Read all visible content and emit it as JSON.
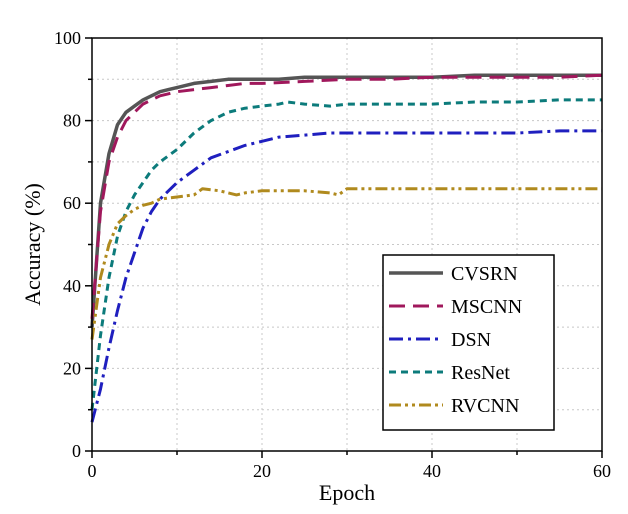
{
  "chart_data": {
    "type": "line",
    "title": "",
    "xlabel": "Epoch",
    "ylabel": "Accuracy (%)",
    "xlim": [
      0,
      60
    ],
    "ylim": [
      0,
      100
    ],
    "xticks": [
      0,
      20,
      40,
      60
    ],
    "yticks": [
      0,
      20,
      40,
      60,
      80,
      100
    ],
    "grid": true,
    "legend_position": "bottom-right",
    "series": [
      {
        "name": "CVSRN",
        "color": "#555555",
        "dash": "solid",
        "x": [
          0,
          1,
          2,
          3,
          4,
          5,
          6,
          7,
          8,
          9,
          10,
          12,
          14,
          16,
          18,
          20,
          22,
          25,
          28,
          32,
          36,
          40,
          45,
          50,
          55,
          60
        ],
        "y": [
          30,
          60,
          72,
          79,
          82,
          83.5,
          85,
          86,
          87,
          87.5,
          88,
          89,
          89.5,
          90,
          90,
          90,
          90,
          90.5,
          90.5,
          90.5,
          90.5,
          90.5,
          91,
          91,
          91,
          91
        ]
      },
      {
        "name": "MSCNN",
        "color": "#a0185c",
        "dash": "dashed",
        "x": [
          0,
          1,
          2,
          3,
          4,
          5,
          6,
          7,
          8,
          9,
          10,
          12,
          14,
          16,
          18,
          20,
          25,
          30,
          35,
          40,
          45,
          50,
          55,
          60
        ],
        "y": [
          32,
          58,
          70,
          76,
          80,
          82,
          84,
          85,
          86,
          86.5,
          87,
          87.5,
          88,
          88.5,
          89,
          89,
          89.5,
          90,
          90,
          90.5,
          90.5,
          90.5,
          90.5,
          91
        ]
      },
      {
        "name": "DSN",
        "color": "#1f1fbf",
        "dash": "dash-dot",
        "x": [
          0,
          1,
          2,
          3,
          4,
          5,
          6,
          7,
          8,
          10,
          12,
          14,
          16,
          18,
          20,
          22,
          25,
          28,
          30,
          35,
          40,
          45,
          50,
          55,
          60
        ],
        "y": [
          7,
          15,
          25,
          34,
          42,
          48,
          54,
          58,
          61,
          65,
          68,
          71,
          72.5,
          74,
          75,
          76,
          76.5,
          77,
          77,
          77,
          77,
          77,
          77,
          77.5,
          77.5
        ]
      },
      {
        "name": "ResNet",
        "color": "#0c7b7b",
        "dash": "short-dash",
        "x": [
          0,
          1,
          2,
          3,
          4,
          5,
          6,
          7,
          8,
          10,
          12,
          14,
          16,
          18,
          20,
          22,
          23,
          25,
          28,
          30,
          35,
          40,
          45,
          50,
          55,
          60
        ],
        "y": [
          10,
          28,
          42,
          52,
          58,
          62,
          65,
          68,
          70,
          73,
          77,
          80,
          82,
          83,
          83.5,
          84,
          84.5,
          84,
          83.5,
          84,
          84,
          84,
          84.5,
          84.5,
          85,
          85
        ]
      },
      {
        "name": "RVCNN",
        "color": "#b08a1e",
        "dash": "dash-dot-dot",
        "x": [
          0,
          1,
          2,
          3,
          4,
          5,
          6,
          7,
          8,
          10,
          12,
          13,
          15,
          17,
          18,
          20,
          22,
          25,
          28,
          29,
          30,
          32,
          35,
          40,
          45,
          50,
          55,
          60
        ],
        "y": [
          27,
          42,
          50,
          55,
          57,
          58.5,
          59.5,
          60,
          61,
          61.5,
          62,
          63.5,
          63,
          62,
          62.5,
          63,
          63,
          63,
          62.5,
          62,
          63.5,
          63.5,
          63.5,
          63.5,
          63.5,
          63.5,
          63.5,
          63.5
        ]
      }
    ]
  }
}
